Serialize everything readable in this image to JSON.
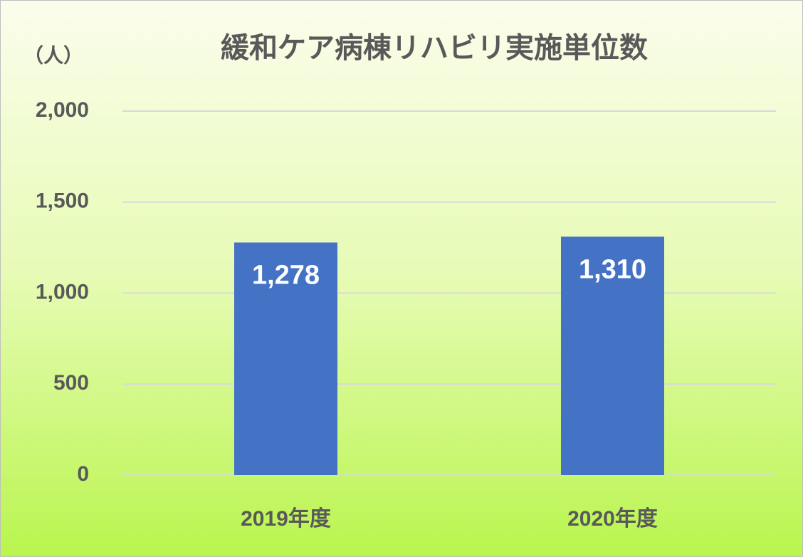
{
  "chart_data": {
    "type": "bar",
    "title": "緩和ケア病棟リハビリ実施単位数",
    "y_axis_label": "（人）",
    "categories": [
      "2019年度",
      "2020年度"
    ],
    "values": [
      1278,
      1310
    ],
    "value_labels": [
      "1,278",
      "1,310"
    ],
    "color": "#4472c4",
    "ylim": [
      0,
      2000
    ],
    "yticks": [
      0,
      500,
      {
        "value": 1000,
        "label": "1,000"
      },
      {
        "value": 1500,
        "label": "1,500"
      },
      {
        "value": 2000,
        "label": "2,000"
      }
    ],
    "grid": true
  }
}
